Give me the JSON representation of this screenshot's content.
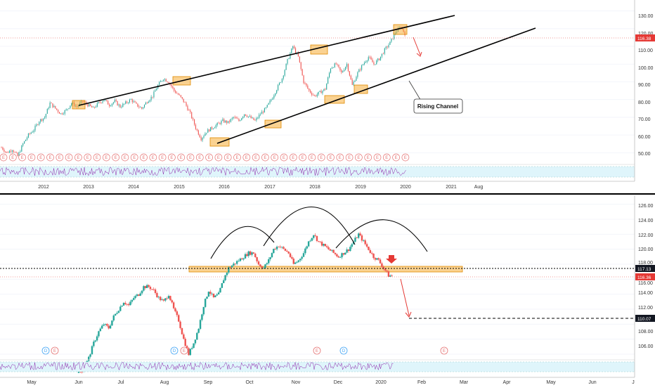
{
  "colors": {
    "up": "#26a69a",
    "down": "#ef5350",
    "highlight": "#f5a623",
    "last_price": "#e53935",
    "arrow": "#e53935",
    "rsi_band": "#dff5fb",
    "earnings": "#e57373",
    "dividend": "#42a5f5"
  },
  "top": {
    "y_axis": [
      "130.00",
      "120.00",
      "110.00",
      "100.00",
      "90.00",
      "80.00",
      "70.00",
      "60.00",
      "50.00"
    ],
    "x_axis": [
      "2012",
      "2013",
      "2014",
      "2015",
      "2016",
      "2017",
      "2018",
      "2019",
      "2020",
      "2021",
      "Aug"
    ],
    "last_price_tag": "116.38",
    "annotation": "Rising Channel",
    "event_marker": "E"
  },
  "bottom": {
    "y_axis": [
      "126.00",
      "124.00",
      "122.00",
      "120.00",
      "118.00",
      "116.00",
      "114.00",
      "112.00",
      "110.00",
      "108.00",
      "106.00"
    ],
    "x_axis": [
      "May",
      "Jun",
      "Jul",
      "Aug",
      "Sep",
      "Oct",
      "Nov",
      "Dec",
      "2020",
      "Feb",
      "Mar",
      "Apr",
      "May",
      "Jun",
      "J"
    ],
    "support_tag": "117.13",
    "last_price_tag": "116.36",
    "target_tag": "110.07",
    "events": [
      "D",
      "E",
      "D",
      "E",
      "E",
      "D",
      "E"
    ]
  },
  "chart_data": [
    {
      "type": "candlestick",
      "ylim": [
        45,
        133
      ],
      "y_ticks": [
        130,
        120,
        110,
        100,
        90,
        80,
        70,
        60,
        50
      ],
      "x_ticks": [
        "2012",
        "2013",
        "2014",
        "2015",
        "2016",
        "2017",
        "2018",
        "2019",
        "2020",
        "2021",
        "Aug"
      ],
      "last_price": 116.38,
      "annotations": [
        "Rising Channel"
      ],
      "series": [
        {
          "values": [
            53,
            50,
            52,
            48,
            55,
            60,
            63,
            68,
            70,
            78,
            75,
            72,
            74,
            78,
            76,
            79,
            77,
            75,
            78,
            80,
            77,
            79,
            76,
            78,
            80,
            77,
            75,
            79,
            82,
            88,
            92,
            90,
            85,
            82,
            78,
            72,
            64,
            58,
            62,
            64,
            66,
            68,
            67,
            70,
            68,
            72,
            70,
            68,
            72,
            75,
            80,
            86,
            92,
            102,
            110,
            104,
            90,
            85,
            82,
            84,
            86,
            98,
            100,
            95,
            100,
            88,
            95,
            100,
            104,
            100,
            103,
            108,
            112,
            118,
            121,
            116
          ]
        }
      ]
    },
    {
      "type": "candlestick",
      "ylim": [
        104.5,
        127
      ],
      "y_ticks": [
        126,
        124,
        122,
        120,
        118,
        116,
        114,
        112,
        110,
        108,
        106
      ],
      "x_ticks": [
        "May",
        "Jun",
        "Jul",
        "Aug",
        "Sep",
        "Oct",
        "Nov",
        "Dec",
        "2020",
        "Feb",
        "Mar",
        "Apr",
        "May",
        "Jun",
        "J"
      ],
      "support_level": 117.13,
      "last_price": 116.36,
      "target": 110.07,
      "series": [
        {
          "values": [
            103.5,
            104,
            105.5,
            107.5,
            109,
            110,
            109.5,
            111,
            112,
            113,
            112.5,
            113.5,
            114,
            115,
            115,
            114.5,
            113.5,
            113,
            114,
            112,
            110.5,
            108,
            106,
            107.5,
            109.5,
            112.5,
            114.5,
            113.5,
            114,
            116,
            117.5,
            118,
            118.5,
            119,
            119.5,
            119.5,
            118,
            117.5,
            118.5,
            120,
            120.5,
            120,
            119.5,
            118,
            118.5,
            119.5,
            121,
            122,
            121,
            120.5,
            120,
            119.5,
            119,
            119.5,
            120,
            121,
            122,
            121,
            120,
            119,
            118.5,
            117.5,
            116.5,
            116.4
          ]
        }
      ]
    }
  ]
}
